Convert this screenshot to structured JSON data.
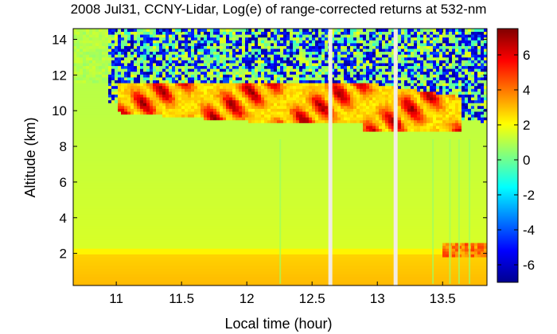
{
  "chart_data": {
    "type": "heatmap",
    "title": "2008 Jul31, CCNY-Lidar, Log(e) of range-corrected returns at 532-nm",
    "xlabel": "Local time (hour)",
    "ylabel": "Altitude (km)",
    "xlim": [
      10.67,
      13.84
    ],
    "ylim": [
      0.2,
      14.6
    ],
    "x_ticks": [
      "11",
      "11.5",
      "12",
      "12.5",
      "13",
      "13.5"
    ],
    "y_ticks": [
      "2",
      "4",
      "6",
      "8",
      "10",
      "12",
      "14"
    ],
    "colorbar": {
      "range": [
        -7,
        7.5
      ],
      "ticks": [
        "-6",
        "-4",
        "-2",
        "0",
        "2",
        "4",
        "6"
      ],
      "colormap": "jet"
    },
    "data_gaps_hours": [
      12.64,
      13.14
    ],
    "features": {
      "boundary_layer_top_km": 1.9,
      "cirrus_layer_km": [
        8.8,
        11.6
      ],
      "noise_region_above_km": 10.5
    }
  }
}
